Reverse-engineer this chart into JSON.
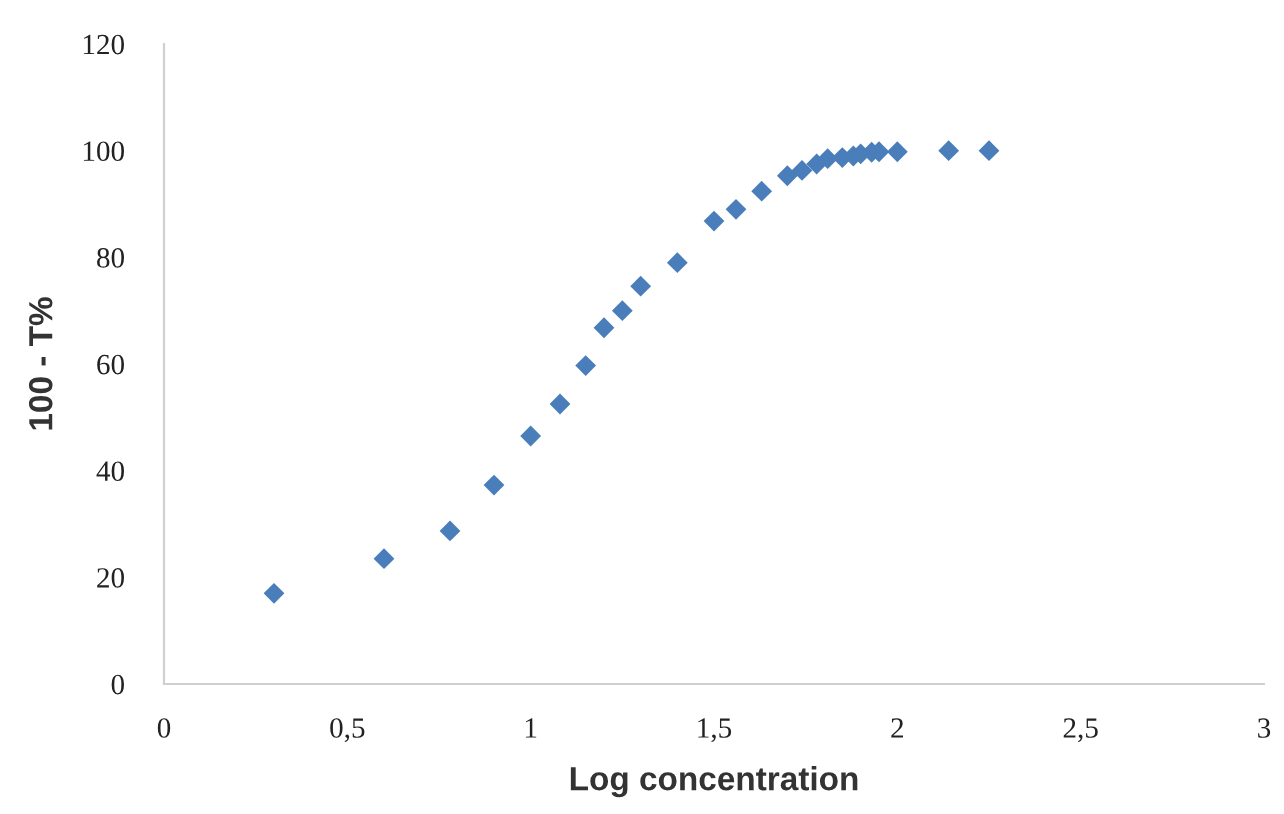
{
  "chart_data": {
    "type": "scatter",
    "xlabel": "Log concentration",
    "ylabel": "100 - T%",
    "x": [
      0.3,
      0.6,
      0.78,
      0.9,
      1.0,
      1.08,
      1.15,
      1.2,
      1.25,
      1.3,
      1.4,
      1.5,
      1.56,
      1.63,
      1.7,
      1.74,
      1.78,
      1.81,
      1.85,
      1.88,
      1.9,
      1.93,
      1.95,
      2.0,
      2.14,
      2.25
    ],
    "series": [
      {
        "color": "#4a7ebb",
        "values": [
          17,
          23.5,
          28.7,
          37.3,
          46.5,
          52.5,
          59.7,
          66.8,
          70,
          74.6,
          79,
          86.8,
          89,
          92.4,
          95.3,
          96.3,
          97.5,
          98.5,
          98.7,
          99,
          99.4,
          99.7,
          99.8,
          99.8,
          100,
          100
        ]
      }
    ],
    "marker": "diamond",
    "grid": false,
    "xlim": [
      0,
      3
    ],
    "xticks": [
      0,
      {
        "value": 0.5,
        "label": "0,5"
      },
      1,
      {
        "value": 1.5,
        "label": "1,5"
      },
      2,
      {
        "value": 2.5,
        "label": "2,5"
      },
      3
    ],
    "ylim": [
      0,
      120
    ],
    "yticks": [
      0,
      20,
      40,
      60,
      80,
      100,
      120
    ]
  }
}
